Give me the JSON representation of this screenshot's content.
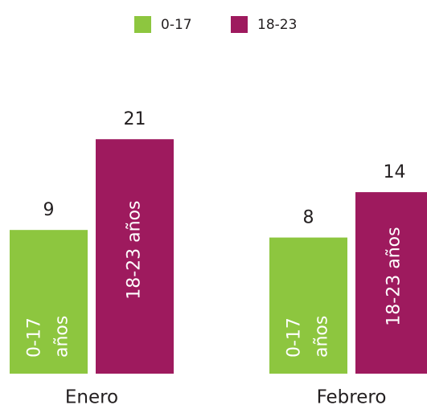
{
  "chart_data": {
    "type": "bar",
    "categories": [
      "Enero",
      "Febrero"
    ],
    "series": [
      {
        "name": "0-17",
        "color": "#8dc63f",
        "values": [
          9,
          8
        ],
        "label_lines": [
          "0-17",
          "años"
        ]
      },
      {
        "name": "18-23",
        "color": "#9e1a5e",
        "values": [
          21,
          14
        ],
        "label_lines": [
          "18-23 años"
        ]
      }
    ],
    "ylim": [
      -10,
      24
    ],
    "legend": "top"
  }
}
